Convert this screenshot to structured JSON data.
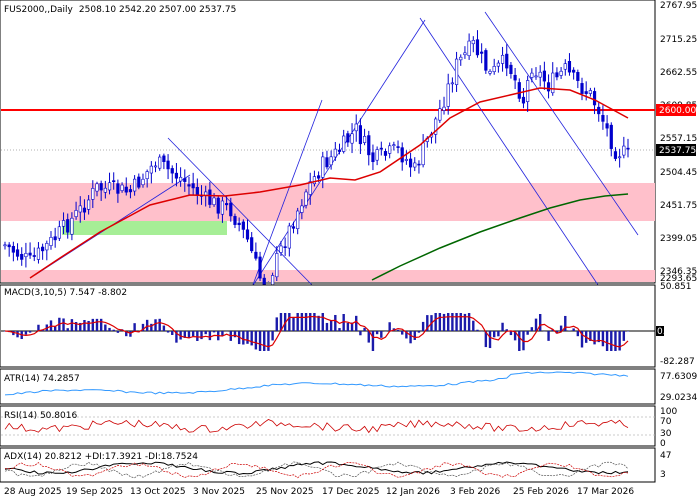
{
  "main": {
    "symbol_title": "FUS2000,,Daily",
    "ohlc": "2508.10 2542.20 2507.00 2537.75",
    "y_ticks": [
      "2767.95",
      "2715.25",
      "2662.55",
      "2609.85",
      "2557.15",
      "2504.45",
      "2451.75",
      "2399.05",
      "2346.35",
      "2293.65"
    ],
    "price_tag": "2537.75",
    "level_tag": "2600.00"
  },
  "macd": {
    "label": "MACD(3,10,5) 7.547 -8.802",
    "y_ticks": [
      "50.851",
      "0.00",
      "-82.287"
    ]
  },
  "atr": {
    "label": "ATR(14) 74.2857",
    "y_ticks": [
      "77.6309",
      "29.0234"
    ]
  },
  "rsi": {
    "label": "RSI(14) 50.8016",
    "y_ticks": [
      "100",
      "70",
      "30",
      "0"
    ]
  },
  "adx": {
    "label": "ADX(14) 20.8212 +DI:17.3921 -DI:18.7524",
    "y_ticks": [
      "47",
      "3"
    ]
  },
  "x_ticks": [
    "28 Aug 2025",
    "19 Sep 2025",
    "13 Oct 2025",
    "3 Nov 2025",
    "25 Nov 2025",
    "17 Dec 2025",
    "12 Jan 2026",
    "3 Feb 2026",
    "25 Feb 2026",
    "17 Mar 2026"
  ],
  "colors": {
    "candle": "#0000cc",
    "ma_fast": "#dd0000",
    "ma_slow": "#006600",
    "level": "#ff0000",
    "zone_pink": "#ffc0cb",
    "zone_green": "#a6ee96",
    "trendline": "#2222dd",
    "atr": "#3399ff",
    "rsi": "#cc0000",
    "adx": "#000000"
  }
}
